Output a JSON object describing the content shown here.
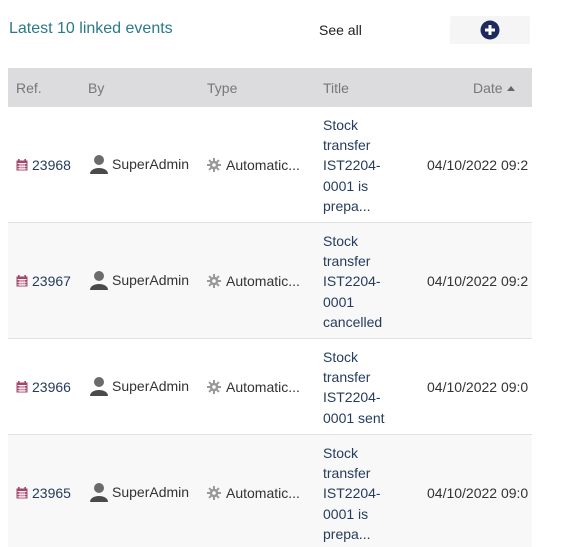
{
  "header": {
    "title": "Latest 10 linked events",
    "see_all_label": "See all",
    "add_icon": "plus-circle-icon"
  },
  "colors": {
    "accent": "#2a7a8a",
    "link": "#263c5c",
    "calendar_icon": "#a2466b",
    "header_bg": "#dcdcdf"
  },
  "table": {
    "columns": {
      "ref": "Ref.",
      "by": "By",
      "type": "Type",
      "title": "Title",
      "date": "Date"
    },
    "sort": {
      "column": "Date",
      "direction": "asc"
    },
    "rows": [
      {
        "ref": "23968",
        "by": "SuperAdmin",
        "type": "Automatic...",
        "title_lines": [
          "Stock",
          "transfer",
          "IST2204-",
          "0001 is",
          "prepa..."
        ],
        "date": "04/10/2022 09:2"
      },
      {
        "ref": "23967",
        "by": "SuperAdmin",
        "type": "Automatic...",
        "title_lines": [
          "Stock",
          "transfer",
          "IST2204-",
          "0001",
          "cancelled"
        ],
        "date": "04/10/2022 09:2"
      },
      {
        "ref": "23966",
        "by": "SuperAdmin",
        "type": "Automatic...",
        "title_lines": [
          "Stock",
          "transfer",
          "IST2204-",
          "0001 sent"
        ],
        "date": "04/10/2022 09:0"
      },
      {
        "ref": "23965",
        "by": "SuperAdmin",
        "type": "Automatic...",
        "title_lines": [
          "Stock",
          "transfer",
          "IST2204-",
          "0001 is",
          "prepa..."
        ],
        "date": "04/10/2022 09:0"
      }
    ]
  }
}
